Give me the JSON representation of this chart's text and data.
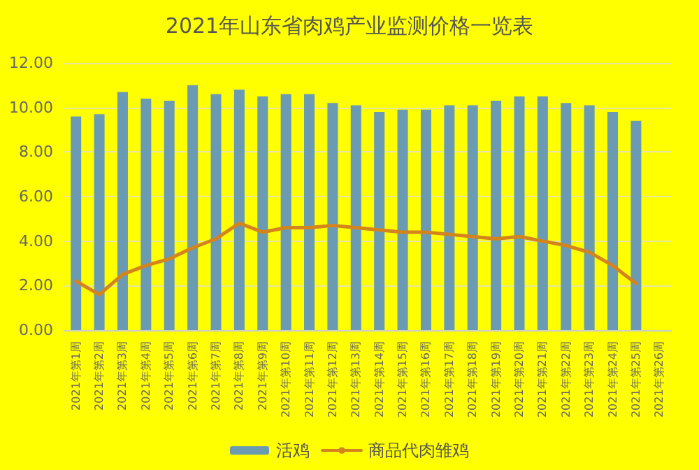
{
  "chart_data": {
    "type": "bar",
    "title": "2021年山东省肉鸡产业监测价格一览表",
    "categories": [
      "2021年第1周",
      "2021年第2周",
      "2021年第3周",
      "2021年第4周",
      "2021年第5周",
      "2021年第6周",
      "2021年第7周",
      "2021年第8周",
      "2021年第9周",
      "2021年第10周",
      "2021年第11周",
      "2021年第12周",
      "2021年第13周",
      "2021年第14周",
      "2021年第15周",
      "2021年第16周",
      "2021年第17周",
      "2021年第18周",
      "2021年第19周",
      "2021年第20周",
      "2021年第21周",
      "2021年第22周",
      "2021年第23周",
      "2021年第24周",
      "2021年第25周",
      "2021年第26周"
    ],
    "series": [
      {
        "name": "活鸡",
        "color": "#6b9bb2",
        "values": [
          9.6,
          9.7,
          10.7,
          10.4,
          10.3,
          11.0,
          10.6,
          10.8,
          10.5,
          10.6,
          10.6,
          10.2,
          10.1,
          9.8,
          9.9,
          9.9,
          10.1,
          10.1,
          10.3,
          10.5,
          10.5,
          10.2,
          10.1,
          9.8,
          9.4,
          null
        ]
      },
      {
        "name": "商品代肉雏鸡",
        "type": "line",
        "color": "#d4841c",
        "values": [
          2.2,
          1.6,
          2.5,
          2.9,
          3.2,
          3.7,
          4.1,
          4.8,
          4.4,
          4.6,
          4.6,
          4.7,
          4.6,
          4.5,
          4.4,
          4.4,
          4.3,
          4.2,
          4.1,
          4.2,
          4.0,
          3.8,
          3.5,
          2.9,
          2.1,
          null
        ]
      }
    ],
    "ylim": [
      0,
      12
    ],
    "yticks": [
      {
        "value": 0,
        "label": "0.00"
      },
      {
        "value": 2,
        "label": "2.00"
      },
      {
        "value": 4,
        "label": "4.00"
      },
      {
        "value": 6,
        "label": "6.00"
      },
      {
        "value": 8,
        "label": "8.00"
      },
      {
        "value": 10,
        "label": "10.00"
      },
      {
        "value": 12,
        "label": "12.00"
      }
    ],
    "grid": "y",
    "legend": "bottom",
    "marker": "none",
    "line_style": "solid"
  }
}
